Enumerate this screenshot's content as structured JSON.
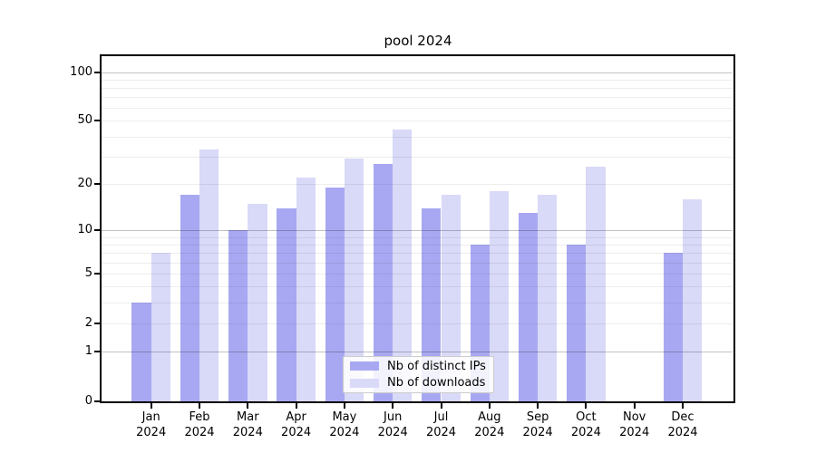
{
  "chart_data": {
    "type": "bar",
    "title": "pool 2024",
    "xlabel": "",
    "ylabel": "",
    "categories": [
      "Jan 2024",
      "Feb 2024",
      "Mar 2024",
      "Apr 2024",
      "May 2024",
      "Jun 2024",
      "Jul 2024",
      "Aug 2024",
      "Sep 2024",
      "Oct 2024",
      "Nov 2024",
      "Dec 2024"
    ],
    "series": [
      {
        "name": "Nb of distinct IPs",
        "color": "#a8a8f2",
        "values": [
          3,
          17,
          10,
          14,
          19,
          27,
          14,
          8,
          13,
          8,
          0,
          7
        ]
      },
      {
        "name": "Nb of downloads",
        "color": "#d9d9f8",
        "values": [
          7,
          33,
          15,
          22,
          29,
          44,
          17,
          18,
          17,
          26,
          0,
          16
        ]
      }
    ],
    "yscale": "log1p",
    "ylim": [
      0,
      127
    ],
    "yticks": [
      0,
      1,
      2,
      5,
      10,
      20,
      50,
      100
    ],
    "major_gridlines": [
      1,
      10,
      100
    ],
    "minor_gridlines": [
      2,
      3,
      4,
      5,
      6,
      7,
      8,
      9,
      20,
      30,
      40,
      50,
      60,
      70,
      80,
      90
    ],
    "grid": true,
    "legend_position": "lower center",
    "colors": {
      "axis": "#000000",
      "text": "#000000",
      "background": "#ffffff"
    }
  }
}
